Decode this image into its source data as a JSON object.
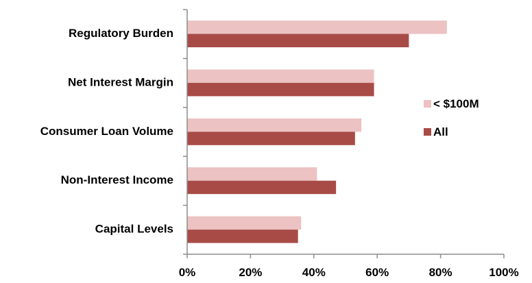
{
  "chart_data": {
    "type": "bar",
    "orientation": "horizontal",
    "categories": [
      "Regulatory Burden",
      "Net Interest Margin",
      "Consumer Loan Volume",
      "Non-Interest Income",
      "Capital Levels"
    ],
    "series": [
      {
        "name": "< $100M",
        "color": "#ecc2c2",
        "values": [
          82,
          59,
          55,
          41,
          36
        ]
      },
      {
        "name": "All",
        "color": "#a84b47",
        "values": [
          70,
          59,
          53,
          47,
          35
        ]
      }
    ],
    "xlim": [
      0,
      100
    ],
    "xticks": [
      0,
      20,
      40,
      60,
      80,
      100
    ],
    "tick_suffix": "%",
    "grid": false,
    "legend": "right"
  }
}
